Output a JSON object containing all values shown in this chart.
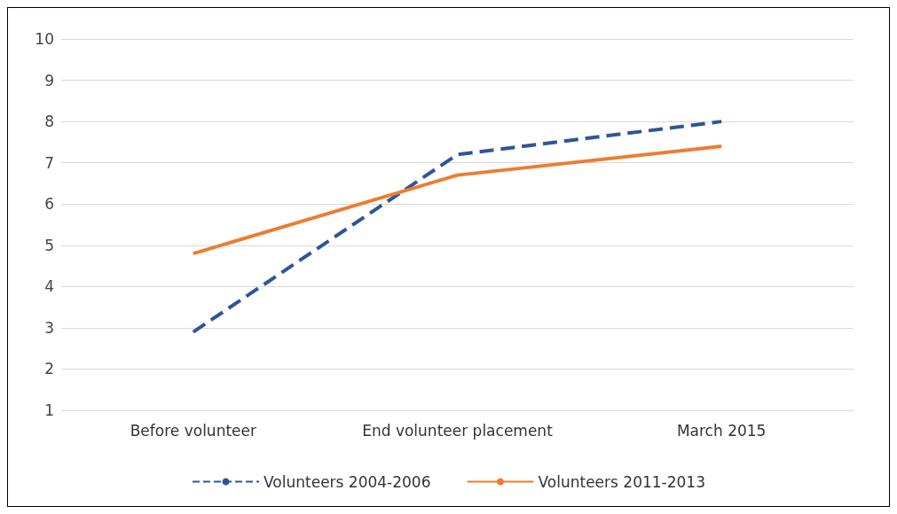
{
  "chart_data": {
    "type": "line",
    "categories": [
      "Before volunteer",
      "End volunteer placement",
      "March 2015"
    ],
    "series": [
      {
        "name": "Volunteers 2004-2006",
        "color": "#2f5597",
        "line_style": "dashed",
        "values": [
          2.9,
          7.2,
          8.0
        ]
      },
      {
        "name": "Volunteers 2011-2013",
        "color": "#ed7d31",
        "line_style": "solid",
        "values": [
          4.8,
          6.7,
          7.4
        ]
      }
    ],
    "ylim": [
      1,
      10
    ],
    "yticks": [
      1,
      2,
      3,
      4,
      5,
      6,
      7,
      8,
      9,
      10
    ],
    "grid": "y",
    "legend": "bottom",
    "marker": "none"
  }
}
